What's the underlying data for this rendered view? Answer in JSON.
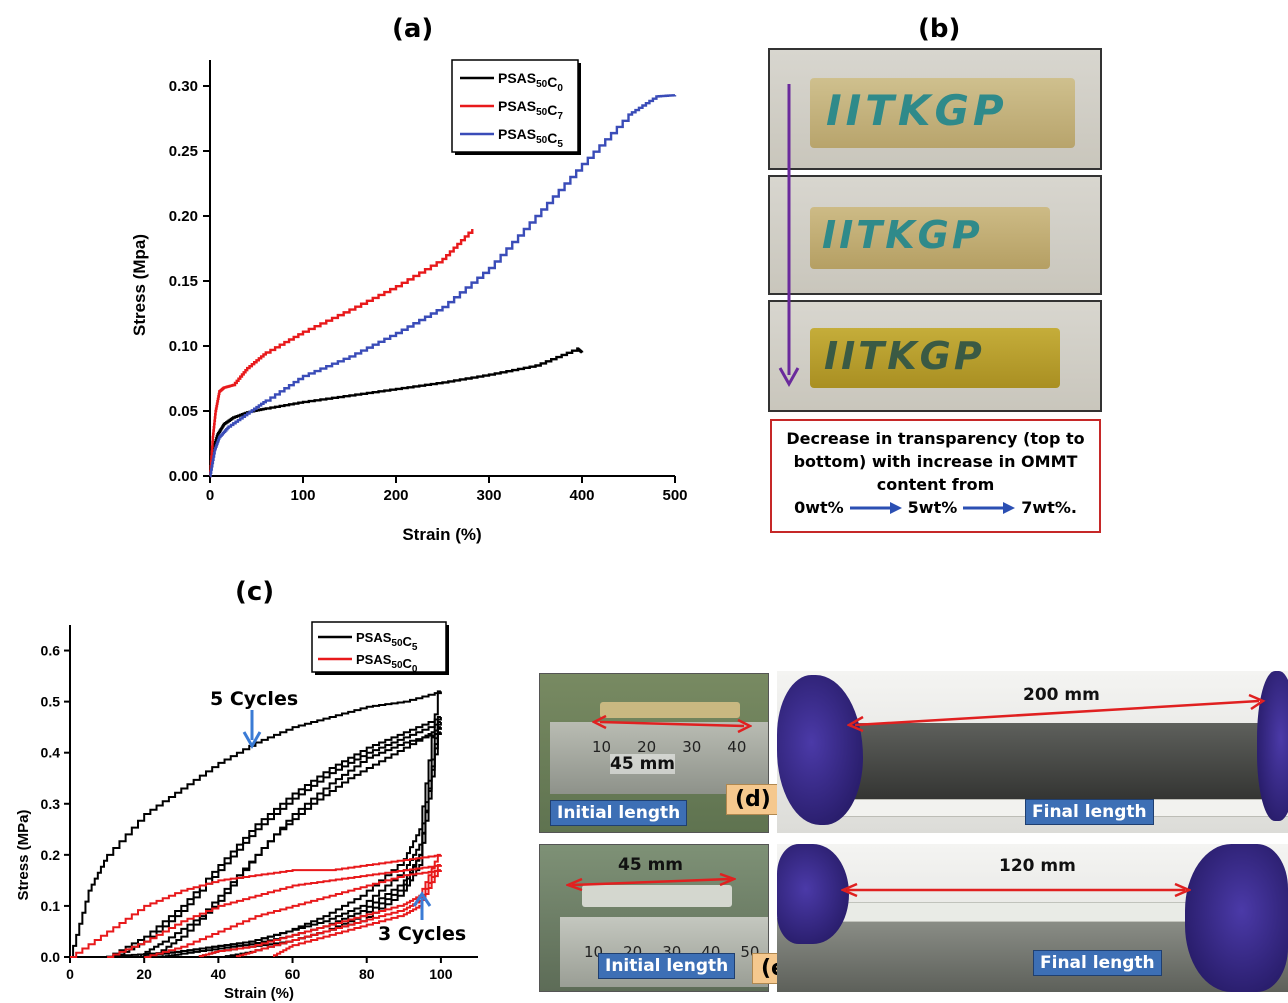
{
  "panels": {
    "a": "(a)",
    "b": "(b)",
    "c": "(c)",
    "d": "(d)",
    "e": "(e)"
  },
  "chart_data": [
    {
      "type": "line",
      "panel": "(a)",
      "xlabel": "Strain (%)",
      "ylabel": "Stress (Mpa)",
      "xlim": [
        0,
        500
      ],
      "ylim": [
        0,
        0.32
      ],
      "xticks": [
        "0",
        "100",
        "200",
        "300",
        "400",
        "500"
      ],
      "yticks": [
        "0.00",
        "0.05",
        "0.10",
        "0.15",
        "0.20",
        "0.25",
        "0.30"
      ],
      "legend_position": "top-right",
      "series": [
        {
          "name": "PSAS50C0",
          "color": "#000000",
          "x": [
            0,
            3,
            8,
            15,
            25,
            40,
            60,
            100,
            150,
            200,
            250,
            300,
            350,
            395,
            400
          ],
          "y": [
            0,
            0.02,
            0.032,
            0.04,
            0.045,
            0.049,
            0.052,
            0.057,
            0.062,
            0.067,
            0.072,
            0.078,
            0.085,
            0.098,
            0.095
          ]
        },
        {
          "name": "PSAS50C7",
          "color": "#e8191b",
          "x": [
            0,
            3,
            6,
            10,
            15,
            25,
            40,
            60,
            100,
            150,
            200,
            250,
            282
          ],
          "y": [
            0,
            0.03,
            0.05,
            0.065,
            0.068,
            0.07,
            0.083,
            0.095,
            0.111,
            0.128,
            0.146,
            0.167,
            0.19
          ]
        },
        {
          "name": "PSAS50C5",
          "color": "#3a4cb8",
          "x": [
            0,
            5,
            10,
            20,
            40,
            60,
            100,
            150,
            200,
            250,
            300,
            350,
            400,
            450,
            480,
            500
          ],
          "y": [
            0,
            0.02,
            0.03,
            0.038,
            0.048,
            0.058,
            0.077,
            0.092,
            0.11,
            0.13,
            0.16,
            0.2,
            0.24,
            0.278,
            0.292,
            0.293
          ]
        }
      ]
    },
    {
      "type": "line",
      "panel": "(c)",
      "xlabel": "Strain (%)",
      "ylabel": "Stress (MPa)",
      "xlim": [
        0,
        110
      ],
      "ylim": [
        0,
        0.65
      ],
      "xticks": [
        "0",
        "20",
        "40",
        "60",
        "80",
        "100"
      ],
      "yticks": [
        "0.0",
        "0.1",
        "0.2",
        "0.3",
        "0.4",
        "0.5",
        "0.6"
      ],
      "legend_position": "top-right",
      "annotations": [
        "5 Cycles",
        "3 Cycles"
      ],
      "series": [
        {
          "name": "PSAS50C5",
          "color": "#000000",
          "loops": [
            {
              "load_x": [
                0,
                5,
                10,
                20,
                30,
                40,
                50,
                60,
                70,
                80,
                90,
                100
              ],
              "load_y": [
                0,
                0.13,
                0.2,
                0.28,
                0.33,
                0.38,
                0.42,
                0.45,
                0.47,
                0.49,
                0.5,
                0.52
              ],
              "unload_x": [
                100,
                95,
                90,
                80,
                70,
                60,
                50,
                40,
                30,
                20,
                10
              ],
              "unload_y": [
                0.52,
                0.25,
                0.18,
                0.12,
                0.08,
                0.05,
                0.03,
                0.02,
                0.01,
                0.005,
                0
              ]
            },
            {
              "load_x": [
                10,
                20,
                30,
                40,
                50,
                60,
                70,
                80,
                90,
                100
              ],
              "load_y": [
                0,
                0.04,
                0.1,
                0.18,
                0.26,
                0.32,
                0.37,
                0.41,
                0.44,
                0.47
              ],
              "unload_x": [
                100,
                95,
                90,
                80,
                70,
                60,
                50,
                40,
                30,
                20
              ],
              "unload_y": [
                0.47,
                0.22,
                0.16,
                0.1,
                0.07,
                0.05,
                0.03,
                0.02,
                0.01,
                0
              ]
            },
            {
              "load_x": [
                12,
                20,
                30,
                40,
                50,
                60,
                70,
                80,
                90,
                100
              ],
              "load_y": [
                0,
                0.03,
                0.09,
                0.17,
                0.25,
                0.31,
                0.36,
                0.4,
                0.43,
                0.46
              ],
              "unload_x": [
                100,
                95,
                90,
                80,
                70,
                60,
                50,
                40,
                30,
                25
              ],
              "unload_y": [
                0.46,
                0.2,
                0.14,
                0.09,
                0.06,
                0.04,
                0.025,
                0.015,
                0.005,
                0
              ]
            },
            {
              "load_x": [
                18,
                25,
                35,
                45,
                55,
                65,
                75,
                85,
                95,
                100
              ],
              "load_y": [
                0,
                0.03,
                0.08,
                0.16,
                0.24,
                0.3,
                0.35,
                0.39,
                0.43,
                0.45
              ],
              "unload_x": [
                100,
                95,
                90,
                80,
                70,
                60,
                50,
                40,
                35
              ],
              "unload_y": [
                0.45,
                0.2,
                0.13,
                0.08,
                0.05,
                0.03,
                0.02,
                0.01,
                0
              ]
            },
            {
              "load_x": [
                22,
                30,
                40,
                50,
                60,
                70,
                80,
                90,
                100
              ],
              "load_y": [
                0,
                0.04,
                0.11,
                0.2,
                0.28,
                0.34,
                0.39,
                0.42,
                0.44
              ],
              "unload_x": [
                100,
                95,
                90,
                80,
                70,
                60,
                50,
                42
              ],
              "unload_y": [
                0.44,
                0.18,
                0.12,
                0.07,
                0.05,
                0.03,
                0.01,
                0
              ]
            }
          ]
        },
        {
          "name": "PSAS50C0",
          "color": "#e8191b",
          "loops": [
            {
              "load_x": [
                0,
                10,
                20,
                30,
                40,
                50,
                60,
                70,
                80,
                90,
                100
              ],
              "load_y": [
                0,
                0.05,
                0.1,
                0.13,
                0.15,
                0.16,
                0.17,
                0.17,
                0.18,
                0.19,
                0.2
              ],
              "unload_x": [
                100,
                95,
                90,
                80,
                70,
                60,
                50,
                40,
                35
              ],
              "unload_y": [
                0.2,
                0.12,
                0.1,
                0.08,
                0.06,
                0.04,
                0.02,
                0.01,
                0
              ]
            },
            {
              "load_x": [
                10,
                20,
                30,
                40,
                50,
                60,
                70,
                80,
                90,
                100
              ],
              "load_y": [
                0,
                0.03,
                0.07,
                0.1,
                0.12,
                0.14,
                0.15,
                0.16,
                0.17,
                0.18
              ],
              "unload_x": [
                100,
                95,
                90,
                80,
                70,
                60,
                50,
                45
              ],
              "unload_y": [
                0.18,
                0.11,
                0.09,
                0.07,
                0.05,
                0.03,
                0.01,
                0
              ]
            },
            {
              "load_x": [
                20,
                30,
                40,
                50,
                60,
                70,
                80,
                90,
                100
              ],
              "load_y": [
                0,
                0.02,
                0.05,
                0.08,
                0.1,
                0.12,
                0.14,
                0.16,
                0.17
              ],
              "unload_x": [
                100,
                95,
                90,
                80,
                70,
                60,
                55
              ],
              "unload_y": [
                0.17,
                0.1,
                0.08,
                0.06,
                0.04,
                0.02,
                0
              ]
            }
          ]
        }
      ]
    }
  ],
  "panel_b": {
    "caption_lines": [
      "Decrease in transparency (top to",
      "bottom) with increase in OMMT",
      "content from"
    ],
    "steps": [
      "0wt%",
      "5wt%",
      "7wt%."
    ],
    "sample_text": "IITKGP"
  },
  "panel_d": {
    "initial_label": "Initial length",
    "final_label": "Final length",
    "initial_measure": "45 mm",
    "final_measure": "200 mm",
    "ruler_digits": [
      "10",
      "20",
      "30",
      "40"
    ]
  },
  "panel_e": {
    "initial_label": "Initial length",
    "final_label": "Final length",
    "initial_measure": "45 mm",
    "final_measure": "120 mm",
    "ruler_digits": [
      "10",
      "20",
      "30",
      "40",
      "50"
    ]
  },
  "colors": {
    "accent_arrow": "#6a2a9c",
    "measure_arrow": "#e02020",
    "caption_border": "#c62828",
    "step_arrow": "#2b4fb3",
    "label_box": "#3d6fb5",
    "letter_box": "#f5c88e"
  }
}
